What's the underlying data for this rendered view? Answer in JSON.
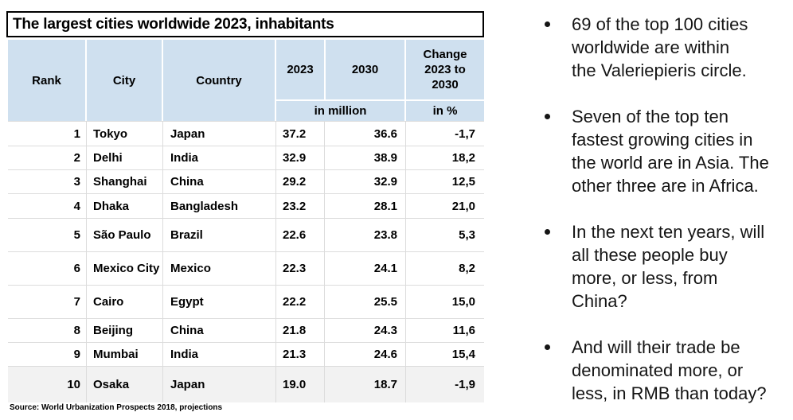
{
  "slide": {
    "title": "The largest cities worldwide 2023, inhabitants"
  },
  "table": {
    "headers": {
      "rank": "Rank",
      "city": "City",
      "country": "Country",
      "y2023": "2023",
      "y2030": "2030",
      "change": "Change 2023 to 2030",
      "unit_million": "in million",
      "unit_percent": "in %"
    },
    "rows": [
      {
        "rank": "1",
        "city": "Tokyo",
        "country": "Japan",
        "y2023": "37.2",
        "y2030": "36.6",
        "change": "-1,7"
      },
      {
        "rank": "2",
        "city": "Delhi",
        "country": "India",
        "y2023": "32.9",
        "y2030": "38.9",
        "change": "18,2"
      },
      {
        "rank": "3",
        "city": "Shanghai",
        "country": "China",
        "y2023": "29.2",
        "y2030": "32.9",
        "change": "12,5"
      },
      {
        "rank": "4",
        "city": "Dhaka",
        "country": "Bangladesh",
        "y2023": "23.2",
        "y2030": "28.1",
        "change": "21,0"
      },
      {
        "rank": "5",
        "city": "São Paulo",
        "country": "Brazil",
        "y2023": "22.6",
        "y2030": "23.8",
        "change": "5,3"
      },
      {
        "rank": "6",
        "city": "Mexico City",
        "country": "Mexico",
        "y2023": "22.3",
        "y2030": "24.1",
        "change": "8,2"
      },
      {
        "rank": "7",
        "city": "Cairo",
        "country": "Egypt",
        "y2023": "22.2",
        "y2030": "25.5",
        "change": "15,0"
      },
      {
        "rank": "8",
        "city": "Beijing",
        "country": "China",
        "y2023": "21.8",
        "y2030": "24.3",
        "change": "11,6"
      },
      {
        "rank": "9",
        "city": "Mumbai",
        "country": "India",
        "y2023": "21.3",
        "y2030": "24.6",
        "change": "15,4"
      },
      {
        "rank": "10",
        "city": "Osaka",
        "country": "Japan",
        "y2023": "19.0",
        "y2030": "18.7",
        "change": "-1,9"
      }
    ],
    "source": "Source: World Urbanization Prospects 2018, projections"
  },
  "bullets": [
    {
      "lines": [
        "69 of the top 100 cities",
        "worldwide are within",
        "the Valeriepieris circle."
      ]
    },
    {
      "lines": [
        "Seven of the top ten",
        "fastest growing cities in",
        "the world are in Asia. The",
        "other three are in Africa."
      ]
    },
    {
      "lines": [
        "In the next ten years, will",
        "all these people buy",
        "more, or less, from",
        "China?"
      ]
    },
    {
      "lines": [
        "And will their trade be",
        "denominated more, or",
        "less, in RMB than today?"
      ]
    }
  ],
  "colors": {
    "header_fill": "#cfe0ef",
    "shaded_row_fill": "#f2f2f2",
    "grid_line": "#dcdcdc",
    "title_border": "#000000",
    "text": "#1a1a1a"
  },
  "chart_data": {
    "type": "table",
    "title": "The largest cities worldwide 2023, inhabitants",
    "columns": [
      "Rank",
      "City",
      "Country",
      "2023 (in million)",
      "2030 (in million)",
      "Change 2023 to 2030 (in %)"
    ],
    "rows": [
      [
        1,
        "Tokyo",
        "Japan",
        37.2,
        36.6,
        -1.7
      ],
      [
        2,
        "Delhi",
        "India",
        32.9,
        38.9,
        18.2
      ],
      [
        3,
        "Shanghai",
        "China",
        29.2,
        32.9,
        12.5
      ],
      [
        4,
        "Dhaka",
        "Bangladesh",
        23.2,
        28.1,
        21.0
      ],
      [
        5,
        "São Paulo",
        "Brazil",
        22.6,
        23.8,
        5.3
      ],
      [
        6,
        "Mexico City",
        "Mexico",
        22.3,
        24.1,
        8.2
      ],
      [
        7,
        "Cairo",
        "Egypt",
        22.2,
        25.5,
        15.0
      ],
      [
        8,
        "Beijing",
        "China",
        21.8,
        24.3,
        11.6
      ],
      [
        9,
        "Mumbai",
        "India",
        21.3,
        24.6,
        15.4
      ],
      [
        10,
        "Osaka",
        "Japan",
        19.0,
        18.7,
        -1.9
      ]
    ],
    "source": "Source: World Urbanization Prospects 2018, projections"
  }
}
